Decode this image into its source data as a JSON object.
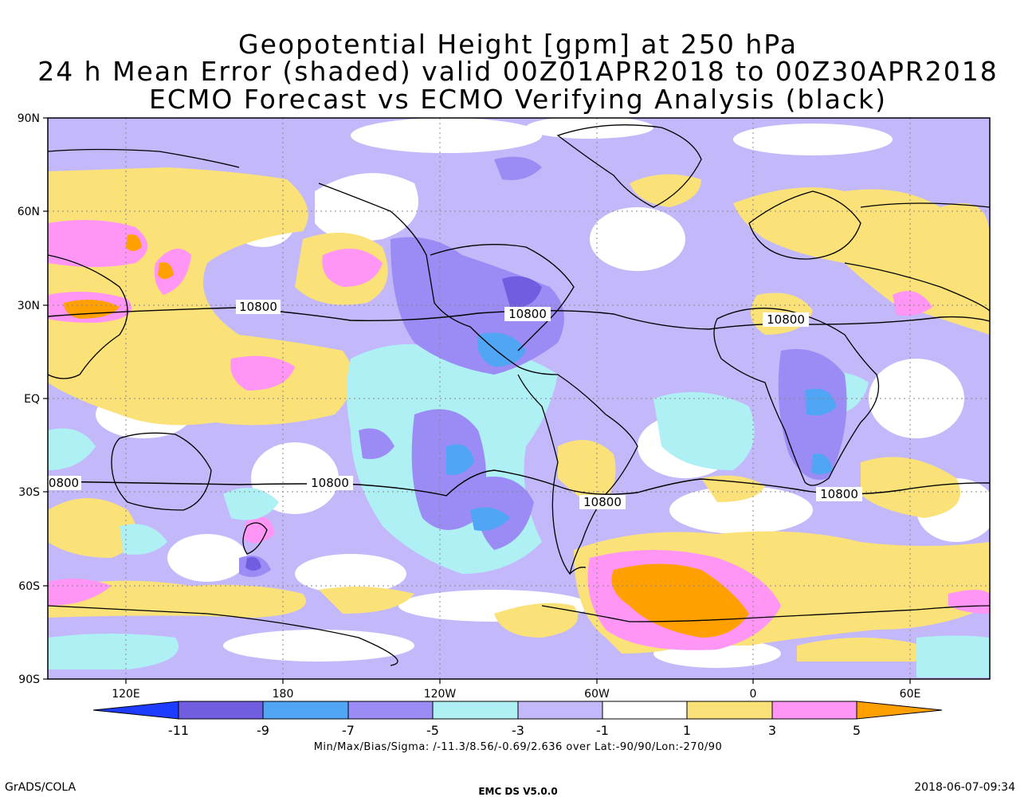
{
  "title": {
    "line1": "Geopotential Height [gpm] at 250 hPa",
    "line2": "24 h Mean Error (shaded) valid 00Z01APR2018 to 00Z30APR2018",
    "line3": "ECMO Forecast vs ECMO Verifying Analysis (black)"
  },
  "map": {
    "lat_labels": [
      "90N",
      "60N",
      "30N",
      "EQ",
      "30S",
      "60S",
      "90S"
    ],
    "lon_labels": [
      "120E",
      "180",
      "120W",
      "60W",
      "0",
      "60E"
    ],
    "contour_value": "10800",
    "contour_labels": [
      "10800",
      "10800",
      "10800",
      "0800",
      "10800",
      "10800",
      "10800"
    ],
    "palette": {
      "lt_-11": "#1e3cff",
      "-11_-9": "#6f5fe0",
      "-9_-7": "#50a5f5",
      "-7_-5": "#9b8cf5",
      "-5_-3": "#aff0f5",
      "-3_-1": "#c3b9fa",
      "-1_1": "#ffffff",
      "1_3": "#fae178",
      "3_5": "#ff96f5",
      "gt_5": "#ffa000"
    }
  },
  "colorbar": {
    "ticks": [
      "-11",
      "-9",
      "-7",
      "-5",
      "-3",
      "-1",
      "1",
      "3",
      "5"
    ],
    "colors": [
      "#1e3cff",
      "#6f5fe0",
      "#50a5f5",
      "#9b8cf5",
      "#aff0f5",
      "#c3b9fa",
      "#ffffff",
      "#fae178",
      "#ff96f5",
      "#ffa000"
    ]
  },
  "stats": "Min/Max/Bias/Sigma: /-11.3/8.56/-0.69/2.636 over Lat:-90/90/Lon:-270/90",
  "footer": {
    "left": "GrADS/COLA",
    "center": "EMC DS V5.0.0",
    "right": "2018-06-07-09:34"
  }
}
